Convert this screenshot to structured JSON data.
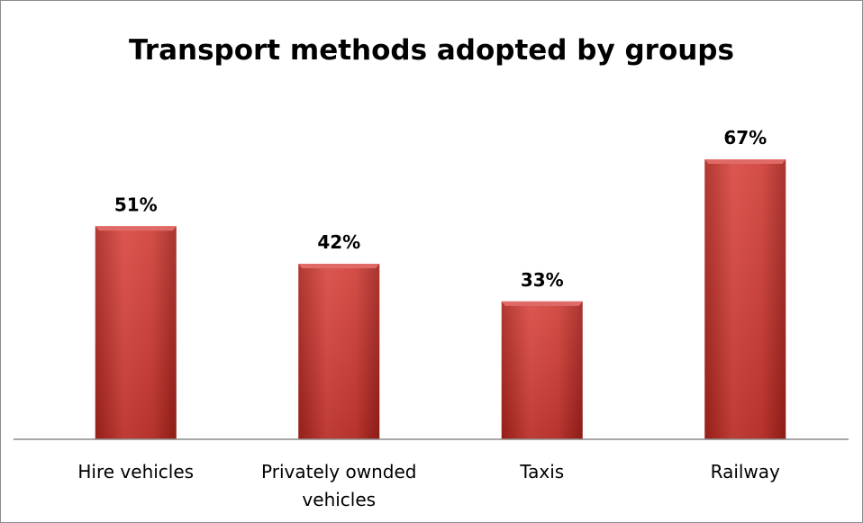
{
  "chart_data": {
    "type": "bar",
    "title": "Transport methods adopted by groups",
    "categories": [
      [
        "Hire vehicles"
      ],
      [
        "Privately ownded",
        "vehicles"
      ],
      [
        "Taxis"
      ],
      [
        "Railway"
      ]
    ],
    "values": [
      51,
      42,
      33,
      67
    ],
    "data_labels": [
      "51%",
      "42%",
      "33%",
      "67%"
    ],
    "unit": "%",
    "ylim": [
      0,
      67
    ],
    "grid": false,
    "legend": "none",
    "colors": {
      "bar_main": "#c0392b",
      "bar_light": "#d9534f",
      "bar_dark": "#a52a25",
      "bar_top": "#e06a66",
      "axis": "#8c8c8c"
    }
  }
}
